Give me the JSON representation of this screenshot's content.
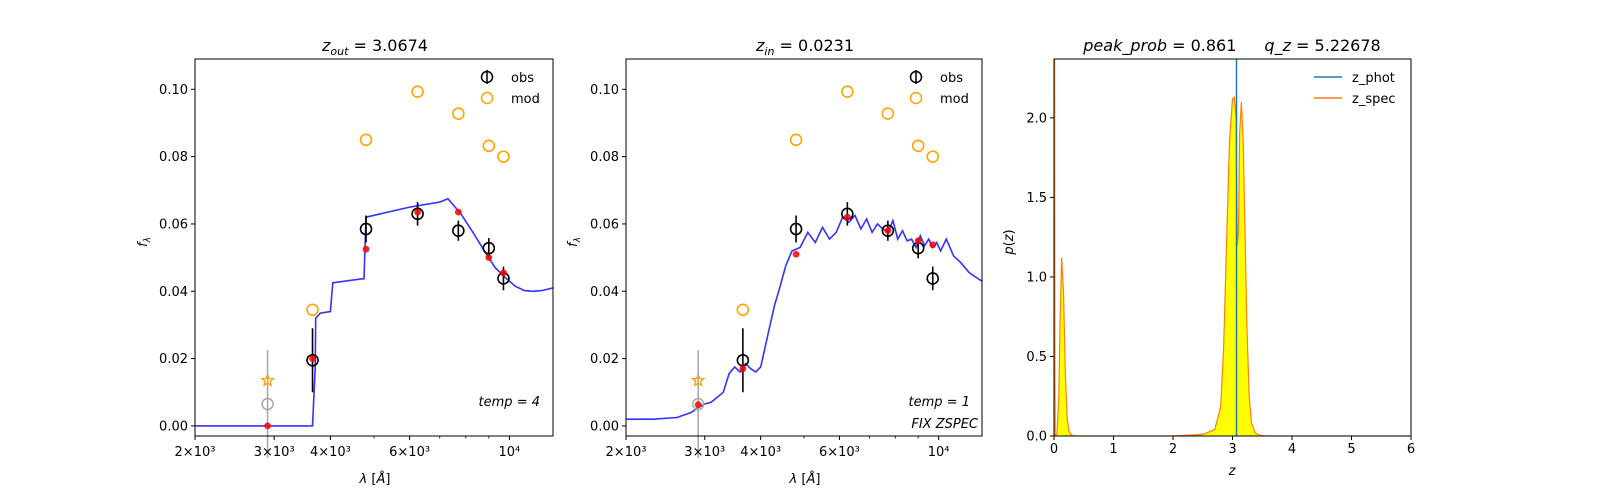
{
  "colors": {
    "obs": "#000000",
    "obs_faded": "#aaaaaa",
    "mod": "#ffa500",
    "model_point": "#ff0000",
    "sed_line": "#3333ff",
    "z_phot": "#1f77b4",
    "z_spec": "#ff7f0e",
    "pz_fill": "#ffff00"
  },
  "chart_data": [
    {
      "type": "scatter",
      "title": "z_out = 3.0674",
      "xlabel": "λ [Å]",
      "ylabel": "f_λ",
      "x_scale": "log",
      "xlim": [
        2000,
        12500
      ],
      "ylim": [
        -0.003,
        0.109
      ],
      "xticks": [
        {
          "value": 2000,
          "label": "2×10³"
        },
        {
          "value": 3000,
          "label": "3×10³"
        },
        {
          "value": 4000,
          "label": "4×10³"
        },
        {
          "value": 6000,
          "label": "6×10³"
        },
        {
          "value": 10000,
          "label": "10⁴"
        }
      ],
      "yticks": [
        {
          "value": 0.0,
          "label": "0.00"
        },
        {
          "value": 0.02,
          "label": "0.02"
        },
        {
          "value": 0.04,
          "label": "0.04"
        },
        {
          "value": 0.06,
          "label": "0.06"
        },
        {
          "value": 0.08,
          "label": "0.08"
        },
        {
          "value": 0.1,
          "label": "0.10"
        }
      ],
      "legend": {
        "position": "top-right",
        "entries": [
          "obs",
          "mod"
        ]
      },
      "annotation": "temp = 4",
      "obs": [
        {
          "x": 2900,
          "y": 0.0065,
          "err": 0.016,
          "faded": true
        },
        {
          "x": 3650,
          "y": 0.0195,
          "err": 0.0095
        },
        {
          "x": 4800,
          "y": 0.0585,
          "err": 0.004
        },
        {
          "x": 6250,
          "y": 0.063,
          "err": 0.0035
        },
        {
          "x": 7700,
          "y": 0.058,
          "err": 0.003
        },
        {
          "x": 9000,
          "y": 0.0528,
          "err": 0.003
        },
        {
          "x": 9700,
          "y": 0.0438,
          "err": 0.0035
        }
      ],
      "mod": [
        {
          "x": 2900,
          "y": 0.0135,
          "star": true
        },
        {
          "x": 3650,
          "y": 0.0345
        },
        {
          "x": 4800,
          "y": 0.085
        },
        {
          "x": 6250,
          "y": 0.0993
        },
        {
          "x": 7700,
          "y": 0.0928
        },
        {
          "x": 9000,
          "y": 0.0832
        },
        {
          "x": 9700,
          "y": 0.08
        }
      ],
      "model_points": [
        {
          "x": 2900,
          "y": 0.0
        },
        {
          "x": 3650,
          "y": 0.02
        },
        {
          "x": 4800,
          "y": 0.0525
        },
        {
          "x": 6250,
          "y": 0.0635
        },
        {
          "x": 7700,
          "y": 0.0635
        },
        {
          "x": 9000,
          "y": 0.05
        },
        {
          "x": 9700,
          "y": 0.0455
        }
      ],
      "sed": {
        "x": [
          2000,
          3500,
          3650,
          3700,
          3710,
          3800,
          4000,
          4050,
          4700,
          4750,
          4800,
          6000,
          7000,
          7300,
          7800,
          8300,
          8800,
          9300,
          9800,
          10300,
          10800,
          11300,
          11800,
          12500
        ],
        "y": [
          0.0,
          0.0,
          0.0,
          0.017,
          0.032,
          0.0335,
          0.034,
          0.0425,
          0.0437,
          0.0437,
          0.062,
          0.065,
          0.0665,
          0.0675,
          0.063,
          0.0575,
          0.052,
          0.047,
          0.044,
          0.0415,
          0.0402,
          0.04,
          0.0402,
          0.041
        ]
      }
    },
    {
      "type": "scatter",
      "title": "z_in = 0.0231",
      "xlabel": "λ [Å]",
      "ylabel": "f_λ",
      "x_scale": "log",
      "xlim": [
        2000,
        12500
      ],
      "ylim": [
        -0.003,
        0.109
      ],
      "xticks": [
        {
          "value": 2000,
          "label": "2×10³"
        },
        {
          "value": 3000,
          "label": "3×10³"
        },
        {
          "value": 4000,
          "label": "4×10³"
        },
        {
          "value": 6000,
          "label": "6×10³"
        },
        {
          "value": 10000,
          "label": "10⁴"
        }
      ],
      "yticks": [
        {
          "value": 0.0,
          "label": "0.00"
        },
        {
          "value": 0.02,
          "label": "0.02"
        },
        {
          "value": 0.04,
          "label": "0.04"
        },
        {
          "value": 0.06,
          "label": "0.06"
        },
        {
          "value": 0.08,
          "label": "0.08"
        },
        {
          "value": 0.1,
          "label": "0.10"
        }
      ],
      "legend": {
        "position": "top-right",
        "entries": [
          "obs",
          "mod"
        ]
      },
      "annotation": "temp = 1",
      "annotation2": "FIX ZSPEC",
      "obs": [
        {
          "x": 2900,
          "y": 0.0065,
          "err": 0.016,
          "faded": true
        },
        {
          "x": 3650,
          "y": 0.0195,
          "err": 0.0095
        },
        {
          "x": 4800,
          "y": 0.0585,
          "err": 0.004
        },
        {
          "x": 6250,
          "y": 0.063,
          "err": 0.0035
        },
        {
          "x": 7700,
          "y": 0.058,
          "err": 0.003
        },
        {
          "x": 9000,
          "y": 0.0528,
          "err": 0.003
        },
        {
          "x": 9700,
          "y": 0.0438,
          "err": 0.0035
        }
      ],
      "mod": [
        {
          "x": 2900,
          "y": 0.0135,
          "star": true
        },
        {
          "x": 3650,
          "y": 0.0345
        },
        {
          "x": 4800,
          "y": 0.085
        },
        {
          "x": 6250,
          "y": 0.0993
        },
        {
          "x": 7700,
          "y": 0.0928
        },
        {
          "x": 9000,
          "y": 0.0832
        },
        {
          "x": 9700,
          "y": 0.08
        }
      ],
      "model_points": [
        {
          "x": 2900,
          "y": 0.0063
        },
        {
          "x": 3650,
          "y": 0.017
        },
        {
          "x": 4800,
          "y": 0.051
        },
        {
          "x": 6250,
          "y": 0.062
        },
        {
          "x": 7700,
          "y": 0.058
        },
        {
          "x": 9000,
          "y": 0.055
        },
        {
          "x": 9700,
          "y": 0.0538
        }
      ],
      "sed": {
        "x": [
          2000,
          2300,
          2600,
          2800,
          2900,
          3000,
          3100,
          3200,
          3300,
          3400,
          3500,
          3600,
          3700,
          3800,
          3900,
          4000,
          4150,
          4300,
          4400,
          4550,
          4700,
          4900,
          5100,
          5300,
          5500,
          5700,
          5900,
          6100,
          6300,
          6500,
          6700,
          6900,
          7100,
          7300,
          7500,
          7700,
          7900,
          8100,
          8300,
          8500,
          8700,
          8900,
          9100,
          9300,
          9500,
          9700,
          9900,
          10100,
          10400,
          10800,
          11200,
          11700,
          12500
        ],
        "y": [
          0.002,
          0.002,
          0.0025,
          0.004,
          0.0055,
          0.0065,
          0.007,
          0.0085,
          0.01,
          0.0155,
          0.0175,
          0.016,
          0.0185,
          0.017,
          0.016,
          0.0175,
          0.027,
          0.036,
          0.0405,
          0.0475,
          0.052,
          0.053,
          0.0575,
          0.0545,
          0.059,
          0.0555,
          0.0575,
          0.062,
          0.0605,
          0.0625,
          0.0585,
          0.0615,
          0.0575,
          0.06,
          0.0585,
          0.0575,
          0.061,
          0.0555,
          0.058,
          0.055,
          0.0555,
          0.053,
          0.0565,
          0.0535,
          0.0555,
          0.053,
          0.0545,
          0.052,
          0.0555,
          0.0505,
          0.0485,
          0.0455,
          0.043
        ]
      }
    },
    {
      "type": "area",
      "title": "peak_prob = 0.861",
      "title2": "q_z = 5.22678",
      "xlabel": "z",
      "ylabel": "p(z)",
      "xlim": [
        0,
        6
      ],
      "ylim": [
        0,
        2.37
      ],
      "xticks": [
        {
          "value": 0,
          "label": "0"
        },
        {
          "value": 1,
          "label": "1"
        },
        {
          "value": 2,
          "label": "2"
        },
        {
          "value": 3,
          "label": "3"
        },
        {
          "value": 4,
          "label": "4"
        },
        {
          "value": 5,
          "label": "5"
        },
        {
          "value": 6,
          "label": "6"
        }
      ],
      "yticks": [
        {
          "value": 0.0,
          "label": "0.0"
        },
        {
          "value": 0.5,
          "label": "0.5"
        },
        {
          "value": 1.0,
          "label": "1.0"
        },
        {
          "value": 1.5,
          "label": "1.5"
        },
        {
          "value": 2.0,
          "label": "2.0"
        }
      ],
      "legend": {
        "position": "top-right",
        "entries": [
          "z_phot",
          "z_spec"
        ]
      },
      "z_phot": 3.0674,
      "pz": {
        "x": [
          0.0,
          0.005,
          0.01,
          0.015,
          0.02,
          0.03,
          0.05,
          0.08,
          0.1,
          0.13,
          0.16,
          0.19,
          0.22,
          0.25,
          0.28,
          0.31,
          0.35,
          0.45,
          1.0,
          2.0,
          2.5,
          2.7,
          2.8,
          2.85,
          2.9,
          2.95,
          3.0,
          3.03,
          3.06,
          3.08,
          3.1,
          3.12,
          3.15,
          3.18,
          3.21,
          3.24,
          3.28,
          3.32,
          3.38,
          3.45,
          3.55,
          3.7,
          4.0,
          5.0,
          6.0
        ],
        "y": [
          0.0,
          2.37,
          2.37,
          0.6,
          0.0,
          0.0,
          0.02,
          0.25,
          0.7,
          1.12,
          0.9,
          0.4,
          0.12,
          0.03,
          0.01,
          0.003,
          0.0,
          0.0,
          0.0,
          0.0,
          0.01,
          0.04,
          0.18,
          0.55,
          1.2,
          1.85,
          2.12,
          2.13,
          2.0,
          1.2,
          1.28,
          1.9,
          2.1,
          1.85,
          1.3,
          0.7,
          0.25,
          0.08,
          0.02,
          0.005,
          0.0,
          0.0,
          0.0,
          0.0,
          0.0
        ]
      }
    }
  ]
}
